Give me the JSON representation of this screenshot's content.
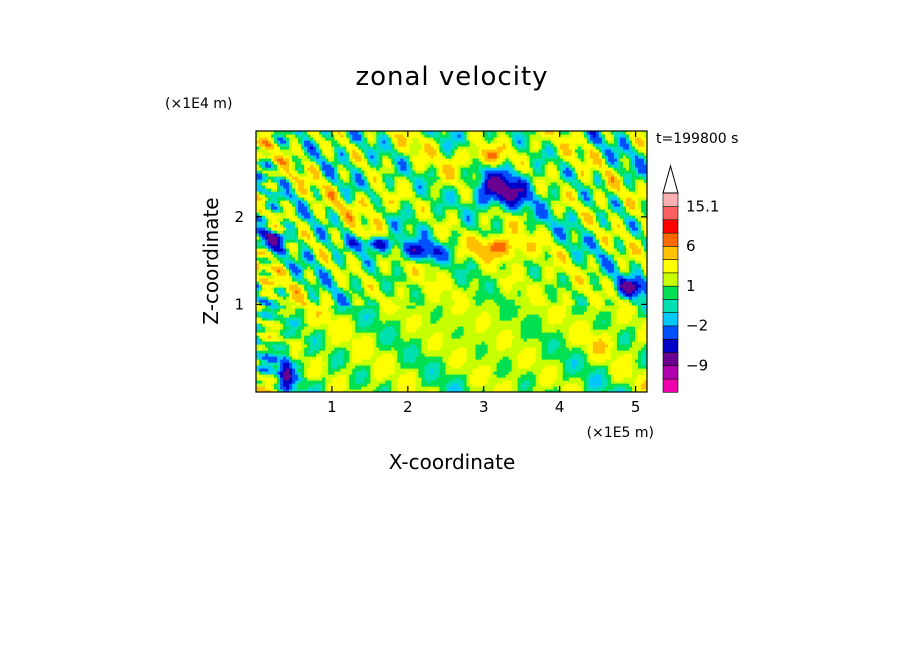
{
  "chart_data": {
    "type": "heatmap",
    "title": "zonal velocity",
    "xlabel": "X-coordinate",
    "ylabel": "Z-coordinate",
    "x_multiplier": "(×1E5 m)",
    "y_multiplier": "(×1E4 m)",
    "time_label": "t=199800 s",
    "xlim": [
      0,
      5.15
    ],
    "ylim": [
      0,
      2.98
    ],
    "xticks": [
      {
        "value": 1,
        "label": "1"
      },
      {
        "value": 2,
        "label": "2"
      },
      {
        "value": 3,
        "label": "3"
      },
      {
        "value": 4,
        "label": "4"
      },
      {
        "value": 5,
        "label": "5"
      }
    ],
    "yticks": [
      {
        "value": 1,
        "label": "1"
      },
      {
        "value": 2,
        "label": "2"
      }
    ],
    "colorbar": {
      "levels": [
        -15,
        -12,
        -9,
        -6,
        -4,
        -2,
        -1,
        0,
        1,
        2,
        4,
        6,
        9,
        12,
        15.1
      ],
      "colors": [
        "#ee00aa",
        "#b000b0",
        "#6a0090",
        "#0000c8",
        "#0050ff",
        "#00c8ff",
        "#00e0b0",
        "#00e050",
        "#c8ff00",
        "#ffff00",
        "#ffc000",
        "#ff6a00",
        "#ff0000",
        "#ff6060",
        "#ffb0b0"
      ],
      "labels": [
        {
          "value": 15.1,
          "label": "15.1"
        },
        {
          "value": 6,
          "label": "6"
        },
        {
          "value": 1,
          "label": "1"
        },
        {
          "value": -2,
          "label": "−2"
        },
        {
          "value": -9,
          "label": "−9"
        }
      ]
    },
    "features": [
      {
        "x": 3.2,
        "z": 2.3,
        "value": -7,
        "rx": 0.35,
        "rz": 0.2
      },
      {
        "x": 3.15,
        "z": 1.65,
        "value": 8,
        "rx": 0.35,
        "rz": 0.12
      },
      {
        "x": 3.0,
        "z": 2.7,
        "value": 6,
        "rx": 0.3,
        "rz": 0.12
      },
      {
        "x": 1.6,
        "z": 1.7,
        "value": -6,
        "rx": 0.3,
        "rz": 0.08
      },
      {
        "x": 2.15,
        "z": 1.6,
        "value": -6,
        "rx": 0.3,
        "rz": 0.1
      },
      {
        "x": 0.2,
        "z": 1.75,
        "value": -6,
        "rx": 0.15,
        "rz": 0.08
      },
      {
        "x": 4.95,
        "z": 1.2,
        "value": -7,
        "rx": 0.2,
        "rz": 0.1
      },
      {
        "x": 0.4,
        "z": 0.25,
        "value": -6,
        "rx": 0.08,
        "rz": 0.2
      },
      {
        "x": 3.05,
        "z": 0.8,
        "value": 1.5,
        "rx": 1.6,
        "rz": 0.7
      },
      {
        "x": 4.5,
        "z": 0.55,
        "value": 4,
        "rx": 0.15,
        "rz": 0.12
      },
      {
        "x": 1.6,
        "z": 2.15,
        "value": 4,
        "rx": 0.25,
        "rz": 0.15
      }
    ]
  }
}
